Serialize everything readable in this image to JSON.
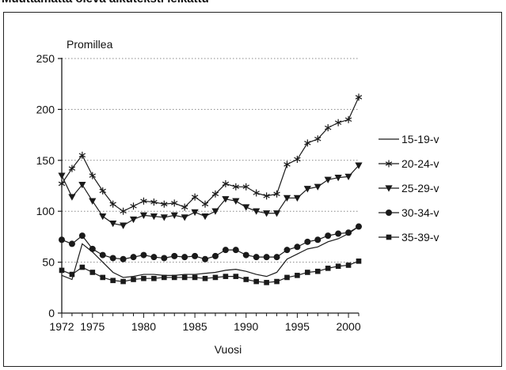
{
  "chart_data": {
    "type": "line",
    "title": "Muuttamatta oleva alkuteksti leikattu",
    "ylabel": "Promillea",
    "xlabel": "Vuosi",
    "ylim": [
      0,
      250
    ],
    "yticks": [
      0,
      50,
      100,
      150,
      200,
      250
    ],
    "xlim": [
      1972,
      2001
    ],
    "xticks": [
      1972,
      1975,
      1980,
      1985,
      1990,
      1995,
      2000
    ],
    "grid": "horizontal-dotted",
    "legend_position": "right",
    "x": [
      1972,
      1973,
      1974,
      1975,
      1976,
      1977,
      1978,
      1979,
      1980,
      1981,
      1982,
      1983,
      1984,
      1985,
      1986,
      1987,
      1988,
      1989,
      1990,
      1991,
      1992,
      1993,
      1994,
      1995,
      1996,
      1997,
      1998,
      1999,
      2000,
      2001
    ],
    "series": [
      {
        "name": "15-19-v",
        "marker": "none",
        "values": [
          37,
          33,
          68,
          60,
          50,
          40,
          35,
          36,
          38,
          38,
          37,
          37,
          38,
          38,
          39,
          40,
          42,
          43,
          41,
          38,
          36,
          40,
          53,
          58,
          63,
          65,
          70,
          73,
          78,
          85
        ]
      },
      {
        "name": "20-24-v",
        "marker": "star",
        "values": [
          127,
          142,
          155,
          135,
          120,
          107,
          100,
          105,
          110,
          109,
          107,
          108,
          104,
          114,
          107,
          117,
          127,
          124,
          124,
          118,
          115,
          117,
          146,
          151,
          167,
          171,
          182,
          187,
          190,
          212
        ]
      },
      {
        "name": "25-29-v",
        "marker": "triangle-down",
        "values": [
          135,
          114,
          126,
          110,
          95,
          88,
          86,
          92,
          96,
          95,
          94,
          96,
          94,
          99,
          95,
          100,
          112,
          110,
          104,
          100,
          98,
          98,
          113,
          113,
          122,
          124,
          131,
          133,
          134,
          145
        ]
      },
      {
        "name": "30-34-v",
        "marker": "circle",
        "values": [
          72,
          68,
          76,
          63,
          57,
          54,
          53,
          55,
          57,
          55,
          54,
          56,
          55,
          56,
          53,
          56,
          62,
          62,
          57,
          55,
          55,
          55,
          62,
          65,
          70,
          72,
          76,
          78,
          79,
          85
        ]
      },
      {
        "name": "35-39-v",
        "marker": "square",
        "values": [
          42,
          38,
          45,
          40,
          35,
          32,
          31,
          33,
          34,
          34,
          35,
          35,
          35,
          35,
          34,
          35,
          36,
          36,
          33,
          31,
          30,
          31,
          35,
          37,
          40,
          41,
          44,
          46,
          47,
          51
        ]
      }
    ],
    "colors": {
      "line": "#1a1a1a",
      "grid": "#888888",
      "frame": "#222222"
    }
  }
}
